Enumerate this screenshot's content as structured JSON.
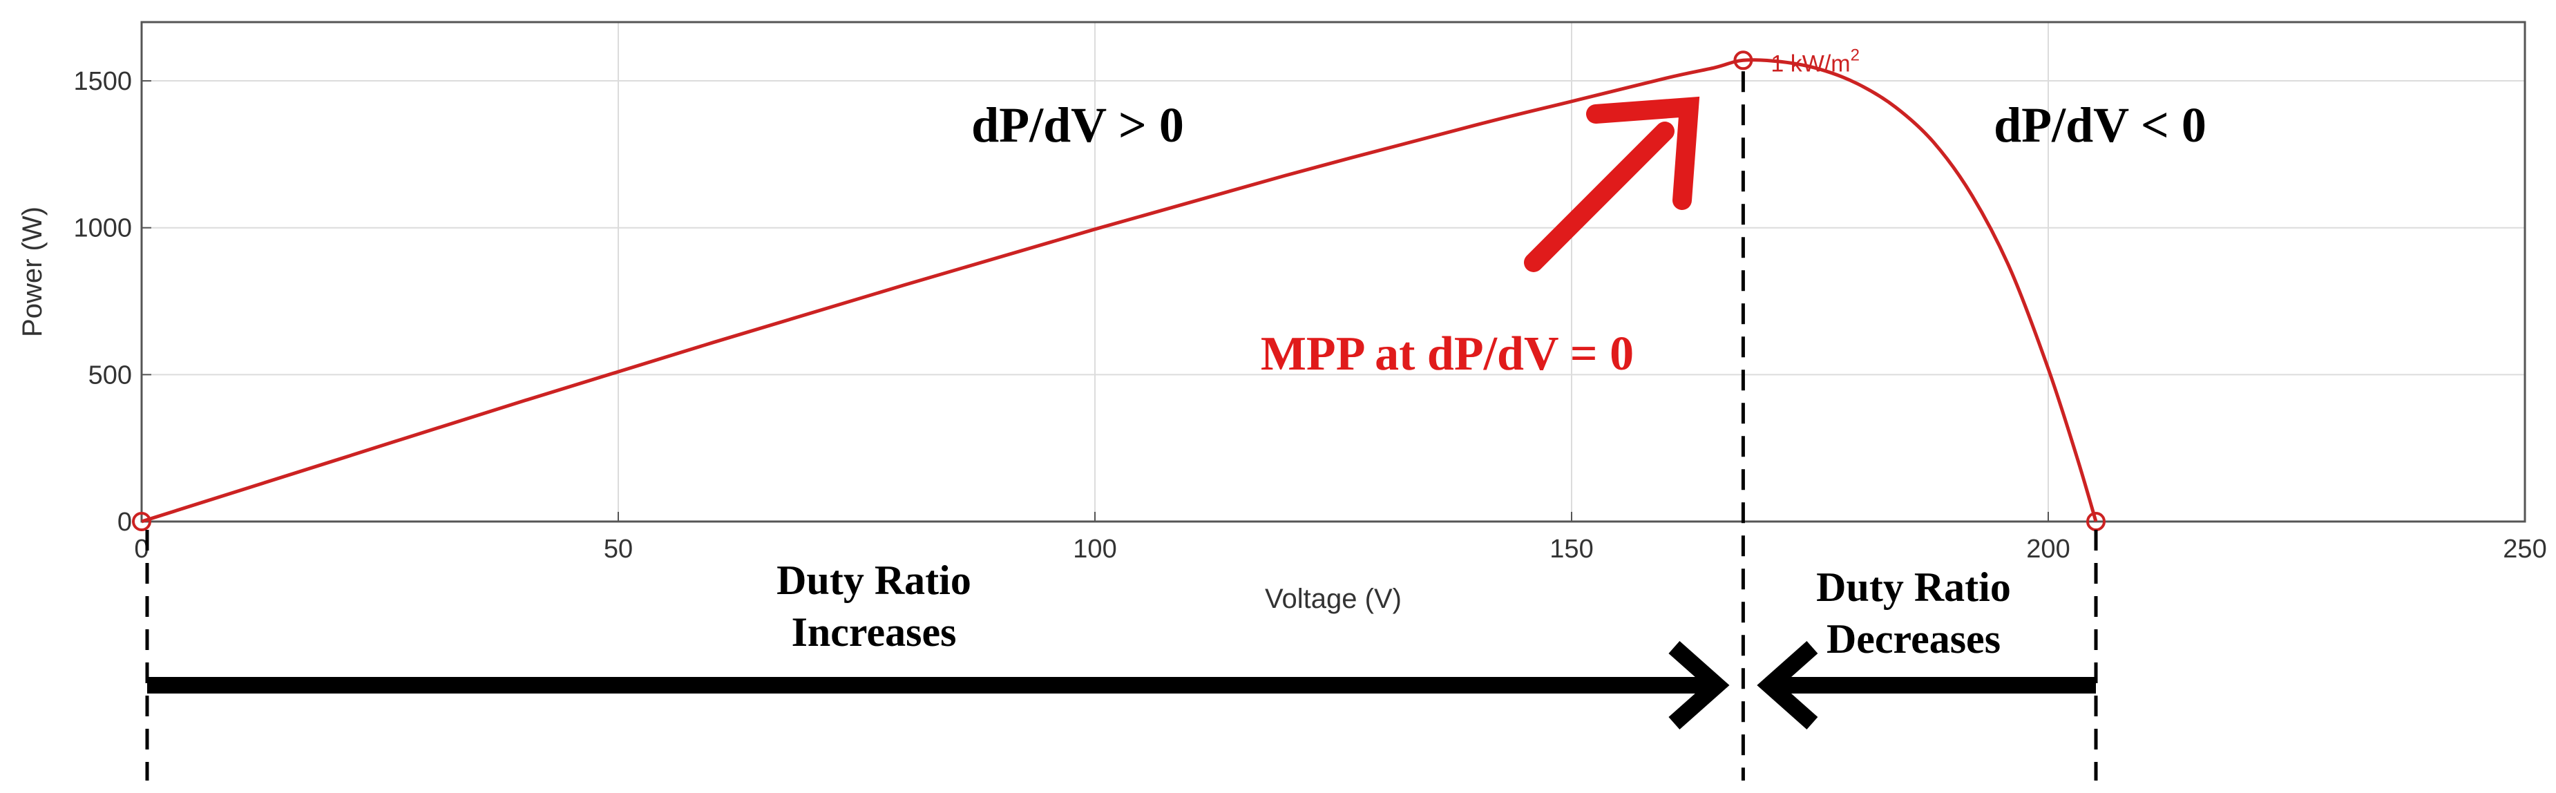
{
  "chart_data": {
    "type": "line",
    "xlabel": "Voltage (V)",
    "ylabel": "Power (W)",
    "xlim": [
      0,
      250
    ],
    "ylim": [
      0,
      1700
    ],
    "x_ticks": [
      0,
      50,
      100,
      150,
      200,
      250
    ],
    "y_ticks": [
      0,
      500,
      1000,
      1500
    ],
    "x_tick_labels": [
      "0",
      "50",
      "100",
      "150",
      "200",
      "250"
    ],
    "y_tick_labels": [
      "0",
      "500",
      "1000",
      "1500"
    ],
    "grid": true,
    "series": [
      {
        "name": "1 kW/m²",
        "color": "#cc2222",
        "x": [
          0,
          20,
          40,
          60,
          80,
          100,
          120,
          140,
          150,
          160,
          165,
          168,
          172,
          176,
          180,
          184,
          188,
          192,
          196,
          200,
          203,
          205
        ],
        "y": [
          0,
          205,
          410,
          610,
          805,
          995,
          1178,
          1350,
          1430,
          1510,
          1545,
          1570,
          1565,
          1540,
          1490,
          1410,
          1290,
          1110,
          860,
          520,
          220,
          0
        ]
      }
    ],
    "markers": [
      {
        "x": 0,
        "y": 0
      },
      {
        "x": 168,
        "y": 1570
      },
      {
        "x": 205,
        "y": 0
      }
    ],
    "curve_label": "1 kW/m",
    "curve_label_sup": "2",
    "annotations": {
      "left_slope": "dP/dV > 0",
      "right_slope": "dP/dV < 0",
      "mpp": "MPP at dP/dV = 0",
      "duty_increase_line1": "Duty Ratio",
      "duty_increase_line2": "Increases",
      "duty_decrease_line1": "Duty Ratio",
      "duty_decrease_line2": "Decreases"
    },
    "colors": {
      "curve": "#cc2222",
      "annotation_red": "#e01b1b",
      "arrow_black": "#000000",
      "grid": "#dcdcdc",
      "axis": "#555555"
    }
  }
}
